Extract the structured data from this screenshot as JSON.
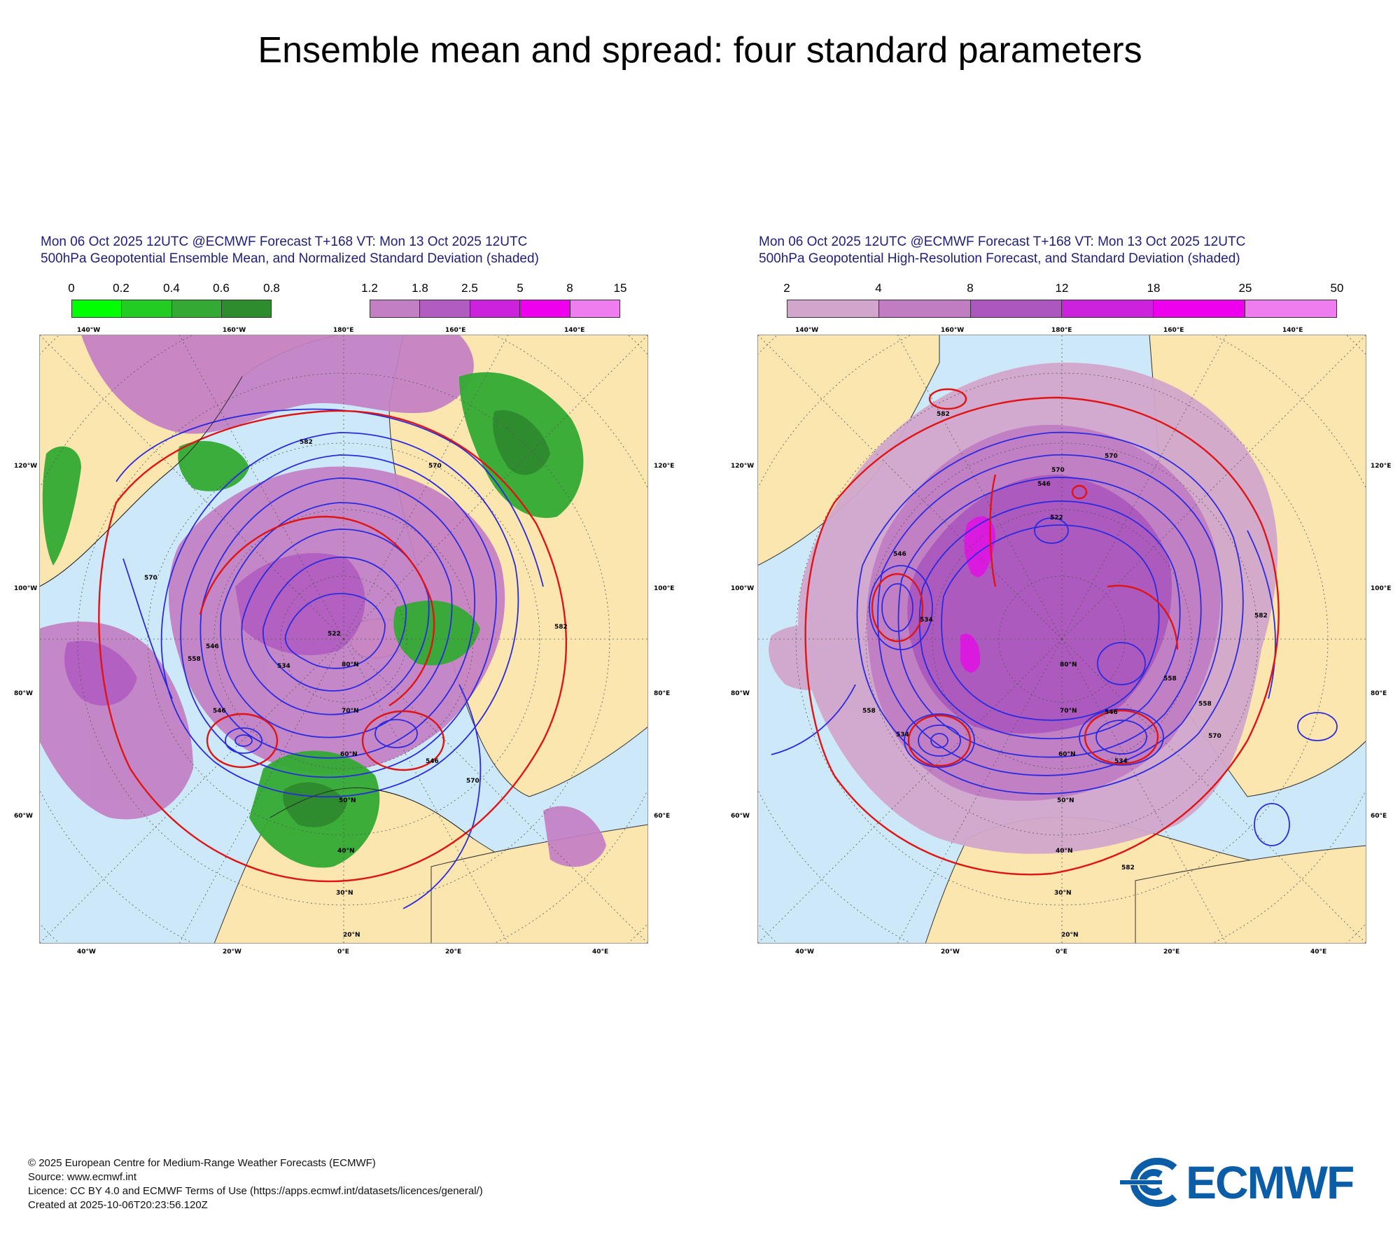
{
  "title": "Ensemble mean and spread: four standard parameters",
  "panels": [
    {
      "header_line1": "Mon 06 Oct 2025 12UTC @ECMWF Forecast T+168 VT: Mon 13 Oct 2025 12UTC",
      "header_line2": "500hPa Geopotential Ensemble Mean, and Normalized Standard Deviation (shaded)",
      "colorbar_green": {
        "ticks": [
          "0",
          "0.2",
          "0.4",
          "0.6",
          "0.8"
        ],
        "colors": [
          "#00ff00",
          "#22cc22",
          "#33aa33",
          "#2e8b2e"
        ]
      },
      "colorbar_purple": {
        "ticks": [
          "1.2",
          "1.8",
          "2.5",
          "5",
          "8",
          "15"
        ],
        "colors": [
          "#c37fc3",
          "#b05cc0",
          "#cc22dd",
          "#ee00ee",
          "#f07df0"
        ]
      },
      "contour_labels": [
        "582",
        "570",
        "570",
        "582",
        "546",
        "558",
        "534",
        "522",
        "546",
        "546",
        "570"
      ],
      "longitude_labels_top": [
        "140°W",
        "160°W",
        "180°E",
        "160°E",
        "140°E"
      ],
      "longitude_labels_bottom": [
        "40°W",
        "20°W",
        "0°E",
        "20°E",
        "40°E"
      ],
      "side_labels_left": [
        "120°W",
        "100°W",
        "80°W",
        "60°W"
      ],
      "side_labels_right": [
        "120°E",
        "100°E",
        "80°E",
        "60°E"
      ],
      "latitude_labels": [
        "20°N",
        "30°N",
        "40°N",
        "50°N",
        "60°N",
        "70°N",
        "80°N"
      ]
    },
    {
      "header_line1": "Mon 06 Oct 2025 12UTC @ECMWF Forecast T+168 VT: Mon 13 Oct 2025 12UTC",
      "header_line2": "500hPa Geopotential High-Resolution Forecast, and Standard Deviation (shaded)",
      "colorbar": {
        "ticks": [
          "2",
          "4",
          "8",
          "12",
          "18",
          "25",
          "50"
        ],
        "colors": [
          "#d2a6cc",
          "#c07dc2",
          "#ab57bd",
          "#cc22dd",
          "#ee00ee",
          "#f07df0"
        ]
      },
      "contour_labels": [
        "582",
        "582",
        "570",
        "570",
        "534",
        "546",
        "546",
        "522",
        "534",
        "558",
        "558",
        "546",
        "534",
        "570",
        "582",
        "558"
      ],
      "longitude_labels_top": [
        "140°W",
        "160°W",
        "180°E",
        "160°E",
        "140°E"
      ],
      "longitude_labels_bottom": [
        "40°W",
        "20°W",
        "0°E",
        "20°E",
        "40°E"
      ],
      "side_labels_left": [
        "120°W",
        "100°W",
        "80°W",
        "60°W"
      ],
      "side_labels_right": [
        "120°E",
        "100°E",
        "80°E",
        "60°E"
      ],
      "latitude_labels": [
        "20°N",
        "30°N",
        "40°N",
        "50°N",
        "60°N",
        "70°N",
        "80°N"
      ]
    }
  ],
  "map_colors": {
    "ocean": "#cde9f9",
    "land": "#fbe6b0",
    "contour_blue": "#2a2ae0",
    "contour_red": "#e01414"
  },
  "footer": {
    "line1": "© 2025 European Centre for Medium-Range Weather Forecasts (ECMWF)",
    "line2": "Source: www.ecmwf.int",
    "line3": "Licence: CC BY 4.0 and ECMWF Terms of Use (https://apps.ecmwf.int/datasets/licences/general/)",
    "line4": "Created at 2025-10-06T20:23:56.120Z"
  },
  "logo": {
    "text": "ECMWF",
    "color": "#0b5da8"
  }
}
